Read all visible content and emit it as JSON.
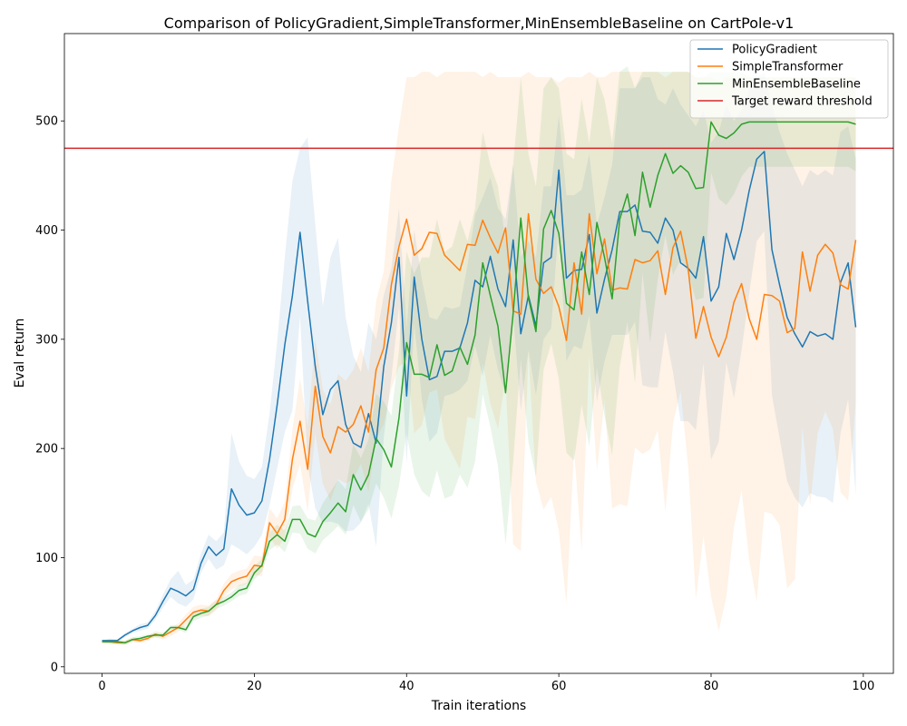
{
  "chart_data": {
    "type": "line",
    "title": "Comparison of PolicyGradient,SimpleTransformer,MinEnsembleBaseline on CartPole-v1",
    "xlabel": "Train iterations",
    "ylabel": "Eval return",
    "xlim": [
      -4.95,
      103.95
    ],
    "ylim": [
      -6,
      580
    ],
    "xticks": [
      0,
      20,
      40,
      60,
      80,
      100
    ],
    "yticks": [
      0,
      100,
      200,
      300,
      400,
      500
    ],
    "grid": false,
    "legend_position": "top-right",
    "threshold": {
      "name": "Target reward threshold",
      "value": 475,
      "color": "#d62728"
    },
    "series": [
      {
        "name": "PolicyGradient",
        "color": "#1f77b4",
        "values": [
          24,
          24,
          24,
          29,
          33,
          36,
          38,
          47,
          60,
          72,
          69,
          65,
          71,
          95,
          110,
          102,
          108,
          163,
          148,
          139,
          141,
          152,
          190,
          240,
          295,
          340,
          398,
          335,
          275,
          231,
          254,
          262,
          222,
          205,
          201,
          232,
          205,
          275,
          315,
          375,
          248,
          357,
          300,
          263,
          266,
          289,
          289,
          292,
          315,
          354,
          348,
          376,
          346,
          330,
          391,
          305,
          340,
          312,
          370,
          375,
          455,
          356,
          363,
          364,
          396,
          324,
          355,
          382,
          417,
          417,
          423,
          399,
          398,
          388,
          411,
          400,
          370,
          365,
          356,
          394,
          335,
          348,
          397,
          373,
          400,
          436,
          465,
          472,
          382,
          350,
          320,
          305,
          293,
          307,
          303,
          305,
          300,
          352,
          370,
          311
        ],
        "upper": [
          24,
          26,
          25,
          31,
          35,
          39,
          41,
          51,
          66,
          80,
          88,
          75,
          80,
          104,
          121,
          115,
          123,
          214,
          188,
          175,
          172,
          183,
          232,
          298,
          375,
          445,
          475,
          485,
          405,
          330,
          375,
          393,
          320,
          285,
          270,
          315,
          300,
          340,
          365,
          420,
          310,
          400,
          355,
          320,
          318,
          330,
          328,
          330,
          368,
          414,
          430,
          448,
          420,
          410,
          460,
          375,
          390,
          375,
          440,
          440,
          505,
          432,
          432,
          437,
          470,
          405,
          430,
          460,
          530,
          530,
          530,
          540,
          540,
          520,
          515,
          530,
          515,
          505,
          495,
          510,
          480,
          490,
          515,
          500,
          510,
          530,
          540,
          545,
          515,
          490,
          470,
          455,
          440,
          455,
          450,
          455,
          450,
          490,
          495,
          465
        ],
        "lower": [
          24,
          22,
          23,
          27,
          31,
          33,
          35,
          43,
          54,
          64,
          58,
          55,
          62,
          86,
          99,
          89,
          93,
          112,
          108,
          103,
          110,
          121,
          148,
          182,
          215,
          235,
          321,
          185,
          145,
          132,
          133,
          131,
          124,
          125,
          132,
          149,
          110,
          210,
          265,
          330,
          186,
          314,
          245,
          206,
          214,
          248,
          250,
          254,
          262,
          294,
          266,
          304,
          272,
          250,
          322,
          235,
          290,
          249,
          300,
          310,
          405,
          280,
          294,
          291,
          322,
          243,
          280,
          304,
          304,
          304,
          316,
          258,
          256,
          256,
          307,
          270,
          225,
          225,
          217,
          278,
          190,
          206,
          279,
          246,
          290,
          342,
          390,
          399,
          249,
          210,
          170,
          155,
          146,
          159,
          156,
          155,
          150,
          214,
          245,
          157
        ]
      },
      {
        "name": "SimpleTransformer",
        "color": "#ff7f0e",
        "values": [
          23,
          23,
          22,
          22,
          25,
          24,
          26,
          30,
          28,
          32,
          36,
          43,
          50,
          52,
          51,
          57,
          70,
          78,
          81,
          83,
          93,
          92,
          132,
          122,
          135,
          190,
          225,
          181,
          257,
          211,
          196,
          220,
          215,
          222,
          239,
          215,
          272,
          292,
          350,
          385,
          410,
          377,
          383,
          398,
          397,
          377,
          370,
          363,
          387,
          386,
          409,
          393,
          379,
          402,
          326,
          323,
          415,
          355,
          342,
          348,
          330,
          299,
          370,
          323,
          415,
          360,
          392,
          345,
          347,
          346,
          373,
          370,
          372,
          381,
          341,
          384,
          399,
          364,
          301,
          330,
          302,
          284,
          302,
          334,
          351,
          319,
          300,
          341,
          340,
          335,
          306,
          310,
          380,
          344,
          377,
          387,
          379,
          350,
          346,
          391
        ],
        "upper": [
          24,
          25,
          24,
          24,
          27,
          26,
          28,
          33,
          31,
          36,
          40,
          48,
          55,
          57,
          56,
          62,
          76,
          85,
          88,
          90,
          102,
          101,
          145,
          136,
          151,
          217,
          264,
          220,
          300,
          254,
          240,
          268,
          262,
          272,
          292,
          270,
          335,
          362,
          445,
          495,
          540,
          540,
          545,
          545,
          540,
          545,
          545,
          545,
          545,
          545,
          540,
          545,
          540,
          540,
          540,
          540,
          545,
          540,
          540,
          540,
          535,
          540,
          540,
          540,
          545,
          540,
          540,
          545,
          545,
          545,
          545,
          545,
          545,
          545,
          540,
          545,
          545,
          545,
          540,
          540,
          540,
          535,
          540,
          540,
          540,
          540,
          540,
          540,
          540,
          540,
          540,
          540,
          540,
          540,
          540,
          540,
          540,
          540,
          540,
          540
        ],
        "lower": [
          22,
          21,
          20,
          20,
          23,
          22,
          24,
          27,
          25,
          28,
          32,
          38,
          45,
          47,
          46,
          52,
          64,
          71,
          74,
          76,
          84,
          83,
          119,
          108,
          119,
          163,
          186,
          142,
          214,
          168,
          152,
          172,
          168,
          172,
          186,
          160,
          209,
          222,
          255,
          275,
          280,
          214,
          221,
          251,
          254,
          209,
          195,
          181,
          229,
          227,
          278,
          241,
          218,
          264,
          112,
          106,
          285,
          170,
          144,
          156,
          125,
          58,
          200,
          106,
          285,
          180,
          244,
          145,
          149,
          147,
          201,
          195,
          199,
          217,
          142,
          223,
          253,
          183,
          62,
          120,
          64,
          33,
          64,
          128,
          162,
          98,
          60,
          142,
          140,
          130,
          72,
          80,
          220,
          148,
          214,
          234,
          218,
          160,
          152,
          242
        ]
      },
      {
        "name": "MinEnsembleBaseline",
        "color": "#2ca02c",
        "values": [
          23,
          23,
          23,
          22,
          25,
          26,
          28,
          29,
          29,
          36,
          36,
          34,
          46,
          49,
          51,
          57,
          60,
          64,
          70,
          72,
          86,
          93,
          115,
          121,
          115,
          135,
          135,
          122,
          119,
          133,
          141,
          150,
          142,
          176,
          162,
          176,
          209,
          199,
          183,
          228,
          297,
          268,
          268,
          265,
          295,
          267,
          271,
          293,
          277,
          304,
          370,
          340,
          312,
          251,
          324,
          411,
          338,
          307,
          401,
          418,
          397,
          333,
          327,
          380,
          341,
          407,
          375,
          337,
          410,
          433,
          395,
          453,
          421,
          450,
          470,
          452,
          459,
          453,
          438,
          439,
          499,
          487,
          484,
          489,
          497,
          499,
          499,
          499,
          499,
          499,
          499,
          499,
          499,
          499,
          499,
          499,
          499,
          499,
          499,
          497
        ],
        "upper": [
          24,
          25,
          25,
          24,
          27,
          28,
          30,
          31,
          31,
          38,
          38,
          37,
          50,
          53,
          55,
          61,
          64,
          68,
          75,
          77,
          92,
          99,
          123,
          130,
          125,
          147,
          148,
          136,
          134,
          150,
          160,
          171,
          163,
          204,
          191,
          208,
          250,
          243,
          230,
          290,
          380,
          360,
          375,
          375,
          410,
          380,
          385,
          410,
          390,
          420,
          490,
          460,
          440,
          390,
          460,
          540,
          470,
          440,
          530,
          540,
          530,
          470,
          465,
          520,
          480,
          540,
          520,
          480,
          545,
          550,
          530,
          545,
          545,
          545,
          545,
          545,
          545,
          545,
          540,
          540,
          545,
          545,
          545,
          545,
          545,
          540,
          540,
          540,
          540,
          540,
          540,
          540,
          540,
          540,
          540,
          540,
          540,
          540,
          540,
          540
        ],
        "lower": [
          22,
          21,
          21,
          20,
          23,
          24,
          26,
          27,
          27,
          34,
          34,
          31,
          42,
          45,
          47,
          53,
          56,
          60,
          65,
          67,
          80,
          87,
          107,
          112,
          105,
          123,
          122,
          108,
          104,
          116,
          122,
          129,
          121,
          148,
          133,
          144,
          168,
          155,
          136,
          166,
          214,
          176,
          161,
          155,
          180,
          154,
          157,
          176,
          164,
          188,
          250,
          220,
          184,
          112,
          188,
          282,
          206,
          174,
          272,
          296,
          264,
          196,
          189,
          240,
          202,
          274,
          230,
          194,
          275,
          316,
          260,
          361,
          297,
          355,
          395,
          359,
          373,
          361,
          336,
          338,
          453,
          429,
          423,
          433,
          449,
          458,
          458,
          458,
          458,
          458,
          458,
          458,
          458,
          458,
          458,
          458,
          458,
          458,
          458,
          454
        ]
      }
    ]
  }
}
